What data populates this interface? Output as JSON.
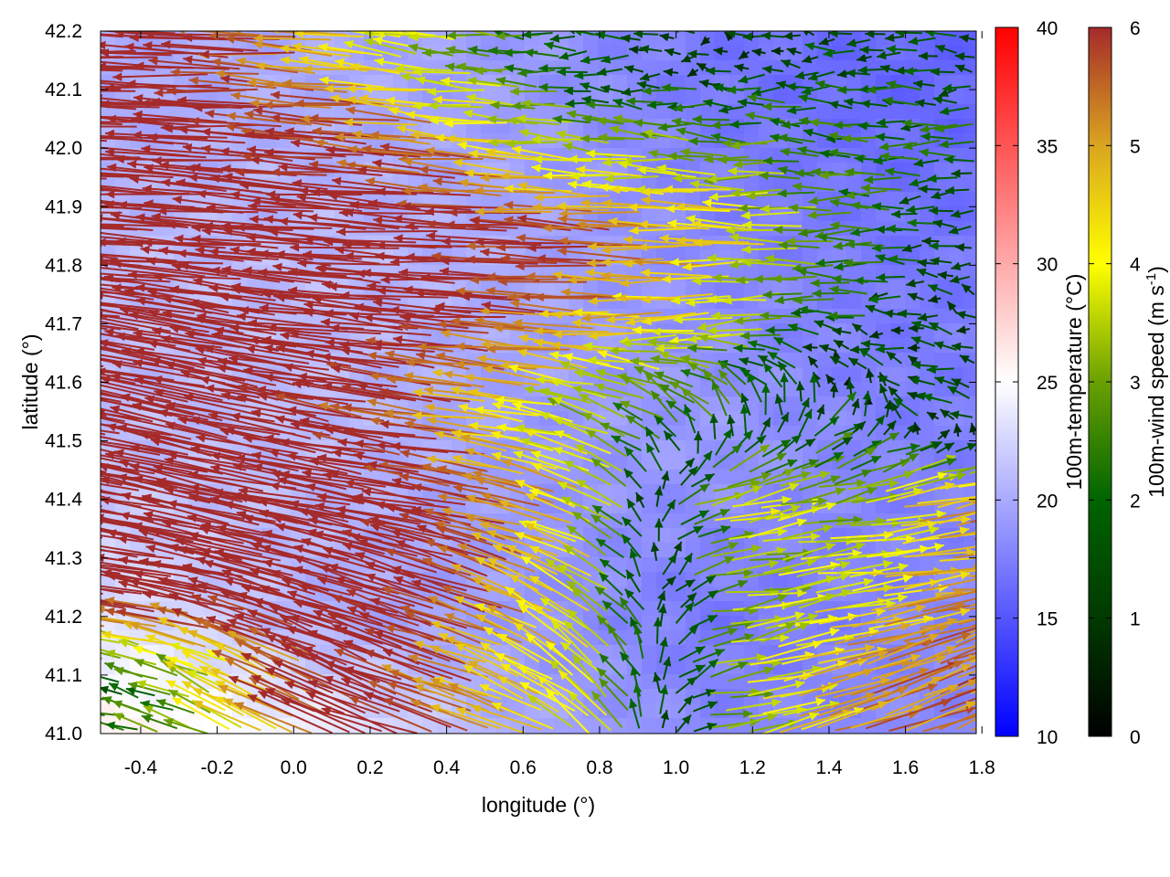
{
  "chart_data": {
    "type": "vector-field-heatmap",
    "xlabel": "longitude (°)",
    "ylabel": "latitude (°)",
    "xlim": [
      -0.505,
      1.785
    ],
    "ylim": [
      41.0,
      42.2
    ],
    "xticks": [
      "-0.4",
      "-0.2",
      "0.0",
      "0.2",
      "0.4",
      "0.6",
      "0.8",
      "1.0",
      "1.2",
      "1.4",
      "1.6",
      "1.8"
    ],
    "xtick_values": [
      -0.4,
      -0.2,
      0.0,
      0.2,
      0.4,
      0.6,
      0.8,
      1.0,
      1.2,
      1.4,
      1.6,
      1.8
    ],
    "yticks": [
      "41.0",
      "41.1",
      "41.2",
      "41.3",
      "41.4",
      "41.5",
      "41.6",
      "41.7",
      "41.8",
      "41.9",
      "42.0",
      "42.1",
      "42.2"
    ],
    "ytick_values": [
      41.0,
      41.1,
      41.2,
      41.3,
      41.4,
      41.5,
      41.6,
      41.7,
      41.8,
      41.9,
      42.0,
      42.1,
      42.2
    ],
    "temperature_colorbar": {
      "label": "100m-temperature (°C)",
      "range": [
        10,
        40
      ],
      "ticks": [
        "10",
        "15",
        "20",
        "25",
        "30",
        "35",
        "40"
      ],
      "colors": [
        "#0000ff",
        "#ffffff",
        "#ff0000"
      ]
    },
    "wind_colorbar": {
      "label": "100m-wind speed (m s",
      "label_sup": "-1",
      "label_end": ")",
      "range": [
        0,
        6
      ],
      "ticks": [
        "0",
        "1",
        "2",
        "3",
        "4",
        "5",
        "6"
      ],
      "colors": [
        "#000000",
        "#003a00",
        "#006400",
        "#6aa000",
        "#ffff00",
        "#daa520",
        "#a52a2a"
      ]
    },
    "temperature_grid": {
      "lon": [
        -0.4,
        0.1,
        0.6,
        1.1,
        1.6
      ],
      "lat": [
        42.1,
        41.8,
        41.5,
        41.2,
        41.0
      ],
      "values": [
        [
          20,
          20,
          19,
          17,
          16
        ],
        [
          21,
          21,
          20,
          18,
          17
        ],
        [
          21,
          21,
          19,
          19,
          17.5
        ],
        [
          23,
          20,
          19,
          17,
          18
        ],
        [
          26,
          24,
          20,
          18,
          18
        ]
      ]
    },
    "wind_grid": {
      "lon": [
        -0.4,
        -0.1,
        0.2,
        0.5,
        0.8,
        1.1,
        1.4,
        1.7
      ],
      "lat": [
        42.15,
        42.0,
        41.85,
        41.7,
        41.55,
        41.4,
        41.25,
        41.1
      ],
      "u": [
        [
          -7,
          -6,
          -4.5,
          -3,
          -1.5,
          -1,
          -1.5,
          -1.5
        ],
        [
          -7,
          -6.5,
          -6,
          -5,
          -3,
          -3,
          -2.5,
          -2
        ],
        [
          -7,
          -7,
          -7,
          -6.5,
          -6,
          -5,
          -3,
          -1.5
        ],
        [
          -7,
          -7,
          -7,
          -6.5,
          -5,
          -4,
          -2,
          -1
        ],
        [
          -7,
          -7,
          -6,
          -5,
          -3,
          -2,
          1,
          -2
        ],
        [
          -7,
          -7,
          -6.5,
          -6,
          -4,
          4,
          3,
          5
        ],
        [
          -7,
          -7,
          -6.5,
          -6,
          -3,
          3,
          4,
          5
        ],
        [
          -2,
          -4,
          -6,
          -5,
          -3,
          3,
          5,
          5
        ]
      ],
      "v": [
        [
          0.3,
          0.3,
          0.5,
          0.3,
          0,
          0,
          0,
          0
        ],
        [
          0.3,
          0.3,
          0.5,
          0.5,
          0.3,
          0.2,
          0,
          0
        ],
        [
          0.5,
          0.5,
          0.5,
          0.3,
          0.3,
          0.2,
          0,
          0
        ],
        [
          1,
          1,
          0.8,
          0.5,
          0.3,
          -0.5,
          0,
          0.3
        ],
        [
          1.5,
          1.5,
          1,
          0.5,
          1,
          2,
          1.5,
          0.5
        ],
        [
          1.5,
          1.5,
          1.2,
          1,
          1.5,
          1,
          0.5,
          1
        ],
        [
          1,
          1.5,
          2,
          2,
          2,
          0.5,
          0.5,
          0.5
        ],
        [
          0.5,
          2,
          2.5,
          1.5,
          2.5,
          0.5,
          1.5,
          2
        ]
      ]
    }
  }
}
